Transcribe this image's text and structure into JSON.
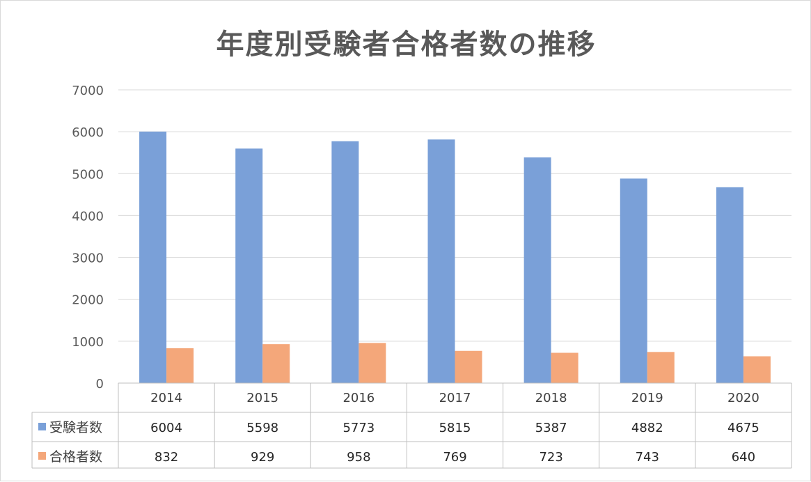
{
  "chart_data": {
    "type": "bar",
    "title": "年度別受験者合格者数の推移",
    "categories": [
      "2014",
      "2015",
      "2016",
      "2017",
      "2018",
      "2019",
      "2020"
    ],
    "series": [
      {
        "name": "受験者数",
        "color": "#7aa0d8",
        "values": [
          6004,
          5598,
          5773,
          5815,
          5387,
          4882,
          4675
        ]
      },
      {
        "name": "合格者数",
        "color": "#f4a77a",
        "values": [
          832,
          929,
          958,
          769,
          723,
          743,
          640
        ]
      }
    ],
    "ylim": [
      0,
      7000
    ],
    "yticks": [
      0,
      1000,
      2000,
      3000,
      4000,
      5000,
      6000,
      7000
    ],
    "grid": true,
    "legend": "data-table"
  }
}
